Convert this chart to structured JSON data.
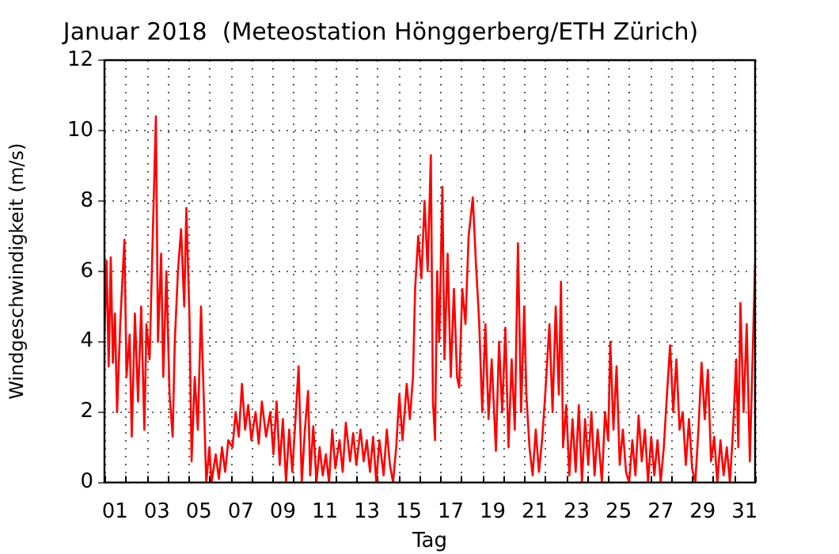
{
  "chart_data": {
    "type": "line",
    "title": "Januar 2018  (Meteostation Hönggerberg/ETH Zürich)",
    "xlabel": "Tag",
    "ylabel": "Windgeschwindigkeit (m/s)",
    "xlim": [
      0,
      31
    ],
    "ylim": [
      0,
      12
    ],
    "yticks": [
      0,
      2,
      4,
      6,
      8,
      10,
      12
    ],
    "xticks": [
      {
        "value": 0,
        "label": null
      },
      {
        "value": 0.5,
        "label": "01"
      },
      {
        "value": 1,
        "label": null
      },
      {
        "value": 2,
        "label": null
      },
      {
        "value": 2.5,
        "label": "03"
      },
      {
        "value": 3,
        "label": null
      },
      {
        "value": 4,
        "label": null
      },
      {
        "value": 4.5,
        "label": "05"
      },
      {
        "value": 5,
        "label": null
      },
      {
        "value": 6,
        "label": null
      },
      {
        "value": 6.5,
        "label": "07"
      },
      {
        "value": 7,
        "label": null
      },
      {
        "value": 8,
        "label": null
      },
      {
        "value": 8.5,
        "label": "09"
      },
      {
        "value": 9,
        "label": null
      },
      {
        "value": 10,
        "label": null
      },
      {
        "value": 10.5,
        "label": "11"
      },
      {
        "value": 11,
        "label": null
      },
      {
        "value": 12,
        "label": null
      },
      {
        "value": 12.5,
        "label": "13"
      },
      {
        "value": 13,
        "label": null
      },
      {
        "value": 14,
        "label": null
      },
      {
        "value": 14.5,
        "label": "15"
      },
      {
        "value": 15,
        "label": null
      },
      {
        "value": 16,
        "label": null
      },
      {
        "value": 16.5,
        "label": "17"
      },
      {
        "value": 17,
        "label": null
      },
      {
        "value": 18,
        "label": null
      },
      {
        "value": 18.5,
        "label": "19"
      },
      {
        "value": 19,
        "label": null
      },
      {
        "value": 20,
        "label": null
      },
      {
        "value": 20.5,
        "label": "21"
      },
      {
        "value": 21,
        "label": null
      },
      {
        "value": 22,
        "label": null
      },
      {
        "value": 22.5,
        "label": "23"
      },
      {
        "value": 23,
        "label": null
      },
      {
        "value": 24,
        "label": null
      },
      {
        "value": 24.5,
        "label": "25"
      },
      {
        "value": 25,
        "label": null
      },
      {
        "value": 26,
        "label": null
      },
      {
        "value": 26.5,
        "label": "27"
      },
      {
        "value": 27,
        "label": null
      },
      {
        "value": 28,
        "label": null
      },
      {
        "value": 28.5,
        "label": "29"
      },
      {
        "value": 29,
        "label": null
      },
      {
        "value": 30,
        "label": null
      },
      {
        "value": 30.5,
        "label": "31"
      },
      {
        "value": 31,
        "label": null
      }
    ],
    "grid": true,
    "legend": false,
    "marker": "none",
    "line_style": "solid",
    "series": [
      {
        "color": "#ff0000",
        "x": [
          0.0,
          0.1,
          0.2,
          0.3,
          0.4,
          0.5,
          0.6,
          0.75,
          0.95,
          1.05,
          1.2,
          1.3,
          1.45,
          1.6,
          1.75,
          1.9,
          2.0,
          2.15,
          2.3,
          2.45,
          2.55,
          2.7,
          2.8,
          2.95,
          3.1,
          3.25,
          3.35,
          3.5,
          3.65,
          3.8,
          3.9,
          4.05,
          4.15,
          4.3,
          4.45,
          4.6,
          4.75,
          4.85,
          5.0,
          5.1,
          5.3,
          5.45,
          5.6,
          5.75,
          5.9,
          6.1,
          6.25,
          6.4,
          6.55,
          6.7,
          6.85,
          7.0,
          7.2,
          7.35,
          7.5,
          7.7,
          7.9,
          8.05,
          8.2,
          8.35,
          8.5,
          8.65,
          8.8,
          8.95,
          9.1,
          9.25,
          9.4,
          9.55,
          9.7,
          9.8,
          9.95,
          10.1,
          10.25,
          10.4,
          10.55,
          10.7,
          10.85,
          11.0,
          11.2,
          11.35,
          11.5,
          11.7,
          11.85,
          12.0,
          12.2,
          12.35,
          12.5,
          12.65,
          12.8,
          12.95,
          13.1,
          13.3,
          13.45,
          13.6,
          13.75,
          13.9,
          14.05,
          14.2,
          14.4,
          14.55,
          14.7,
          14.8,
          14.95,
          15.1,
          15.25,
          15.4,
          15.55,
          15.65,
          15.75,
          15.85,
          15.95,
          16.1,
          16.2,
          16.35,
          16.5,
          16.65,
          16.8,
          16.9,
          17.05,
          17.2,
          17.35,
          17.55,
          17.7,
          17.85,
          18.0,
          18.15,
          18.3,
          18.45,
          18.65,
          18.8,
          18.95,
          19.1,
          19.25,
          19.4,
          19.55,
          19.7,
          19.85,
          20.0,
          20.1,
          20.25,
          20.4,
          20.55,
          20.7,
          20.85,
          21.0,
          21.2,
          21.35,
          21.5,
          21.65,
          21.75,
          21.85,
          22.0,
          22.15,
          22.3,
          22.45,
          22.6,
          22.75,
          22.9,
          23.05,
          23.2,
          23.35,
          23.5,
          23.7,
          23.85,
          24.0,
          24.1,
          24.25,
          24.4,
          24.55,
          24.7,
          24.85,
          25.0,
          25.15,
          25.3,
          25.45,
          25.6,
          25.75,
          25.9,
          26.05,
          26.2,
          26.35,
          26.5,
          26.65,
          26.8,
          26.95,
          27.1,
          27.25,
          27.4,
          27.55,
          27.7,
          27.85,
          28.0,
          28.15,
          28.3,
          28.45,
          28.6,
          28.75,
          28.9,
          29.05,
          29.2,
          29.35,
          29.5,
          29.65,
          29.8,
          29.95,
          30.1,
          30.2,
          30.3,
          30.45,
          30.6,
          30.75,
          30.9,
          31.0
        ],
        "values": [
          4.2,
          6.3,
          3.3,
          6.4,
          3.4,
          4.8,
          2.0,
          4.5,
          6.9,
          3.0,
          4.2,
          1.3,
          4.8,
          2.3,
          5.0,
          1.5,
          4.5,
          3.5,
          7.0,
          10.4,
          4.0,
          6.5,
          3.0,
          6.0,
          2.5,
          1.3,
          4.0,
          6.0,
          7.2,
          5.0,
          7.8,
          4.7,
          0.6,
          3.0,
          1.5,
          5.0,
          2.0,
          0.0,
          1.0,
          0.0,
          0.8,
          0.1,
          1.0,
          0.3,
          1.2,
          1.0,
          2.0,
          1.3,
          2.8,
          1.5,
          2.2,
          1.2,
          2.0,
          1.1,
          2.3,
          1.3,
          2.0,
          0.8,
          2.3,
          0.5,
          1.8,
          0.0,
          1.5,
          0.3,
          1.8,
          3.3,
          0.0,
          1.5,
          2.6,
          0.2,
          1.6,
          0.0,
          1.0,
          0.2,
          0.8,
          0.0,
          1.5,
          0.4,
          1.2,
          0.3,
          1.7,
          0.6,
          1.4,
          0.5,
          1.5,
          0.6,
          1.2,
          0.3,
          1.3,
          0.0,
          1.2,
          0.2,
          1.5,
          0.5,
          0.0,
          1.0,
          2.5,
          1.2,
          2.8,
          1.8,
          3.0,
          5.5,
          7.0,
          5.8,
          8.0,
          6.0,
          9.3,
          2.3,
          1.2,
          6.0,
          4.0,
          8.4,
          3.5,
          6.5,
          3.0,
          5.5,
          3.0,
          2.7,
          5.5,
          4.5,
          7.0,
          8.1,
          6.2,
          4.6,
          2.0,
          4.5,
          1.8,
          3.5,
          0.9,
          4.0,
          2.0,
          4.4,
          1.0,
          3.5,
          1.5,
          6.8,
          2.0,
          5.0,
          2.5,
          1.0,
          0.2,
          1.5,
          0.3,
          1.2,
          2.5,
          4.5,
          2.0,
          5.0,
          2.5,
          5.7,
          1.0,
          2.2,
          0.2,
          1.8,
          0.3,
          2.2,
          0.0,
          1.8,
          0.5,
          2.0,
          0.2,
          1.5,
          0.0,
          2.0,
          1.2,
          4.0,
          1.5,
          3.3,
          0.5,
          1.5,
          0.3,
          0.0,
          1.2,
          0.2,
          1.9,
          0.6,
          1.5,
          0.0,
          1.3,
          0.2,
          1.2,
          0.0,
          1.0,
          2.5,
          3.9,
          2.0,
          3.5,
          1.5,
          2.0,
          0.5,
          1.8,
          0.4,
          0.0,
          1.5,
          3.4,
          1.8,
          3.2,
          0.6,
          1.3,
          0.0,
          1.2,
          0.2,
          1.0,
          0.0,
          1.5,
          3.5,
          1.0,
          5.1,
          2.0,
          4.5,
          0.6,
          4.0,
          6.2
        ]
      }
    ]
  }
}
